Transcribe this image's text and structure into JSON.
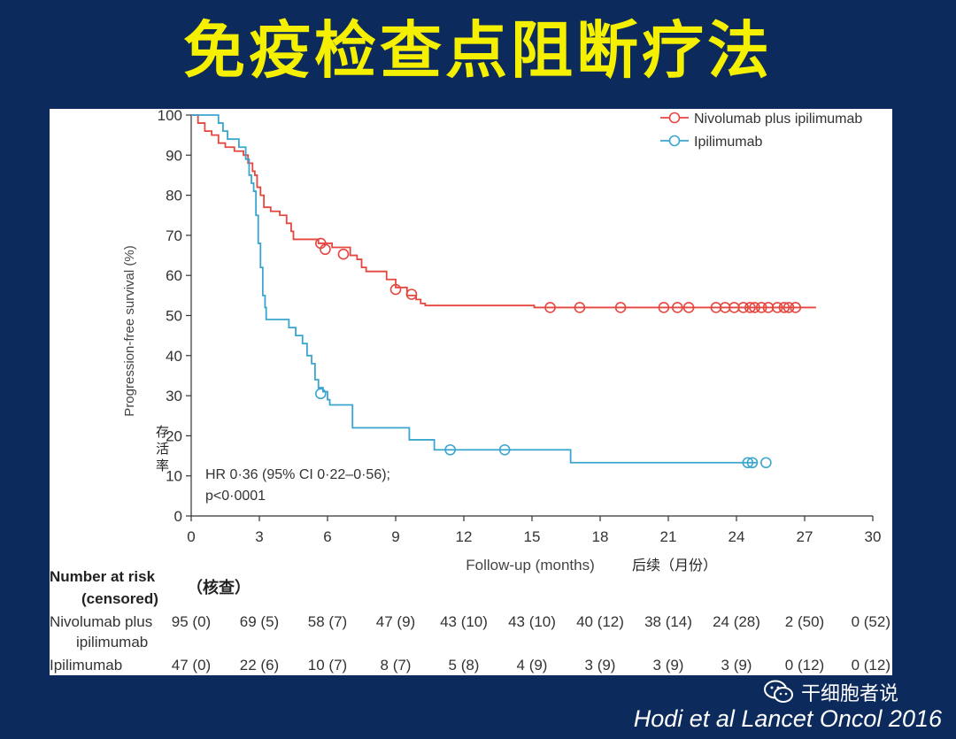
{
  "slide": {
    "title": "免疫检查点阻断疗法",
    "watermark": "干细胞者说",
    "citation": "Hodi et al Lancet Oncol 2016"
  },
  "chart_data": {
    "type": "line",
    "ylabel": "Progression-free survival (%)",
    "ylabel_cn": "存活率",
    "xlabel": "Follow-up (months)",
    "xlabel_cn": "后续（月份）",
    "xlim": [
      0,
      30
    ],
    "ylim": [
      0,
      100
    ],
    "x_ticks": [
      "0",
      "3",
      "6",
      "9",
      "12",
      "15",
      "18",
      "21",
      "24",
      "27",
      "30"
    ],
    "y_ticks": [
      "0",
      "10",
      "20",
      "30",
      "40",
      "50",
      "60",
      "70",
      "80",
      "90",
      "100"
    ],
    "legend_position": "top-right",
    "annotation": [
      "HR 0·36 (95% CI 0·22–0·56);",
      "p<0·0001"
    ],
    "series": [
      {
        "name": "Nivolumab plus ipilimumab",
        "color": "#e5473f",
        "steps": [
          [
            0,
            100
          ],
          [
            0.3,
            98
          ],
          [
            0.6,
            96
          ],
          [
            0.9,
            95
          ],
          [
            1.2,
            93
          ],
          [
            1.5,
            92
          ],
          [
            1.9,
            91
          ],
          [
            2.3,
            90
          ],
          [
            2.5,
            88
          ],
          [
            2.7,
            86
          ],
          [
            2.8,
            85
          ],
          [
            2.9,
            82
          ],
          [
            3.05,
            80
          ],
          [
            3.2,
            77
          ],
          [
            3.5,
            76
          ],
          [
            3.9,
            75
          ],
          [
            4.2,
            73
          ],
          [
            4.4,
            71
          ],
          [
            4.5,
            69
          ],
          [
            5.6,
            68
          ],
          [
            6.2,
            67
          ],
          [
            7.0,
            65
          ],
          [
            7.3,
            64
          ],
          [
            7.5,
            62
          ],
          [
            7.7,
            61
          ],
          [
            8.6,
            59
          ],
          [
            9.0,
            57
          ],
          [
            9.5,
            55
          ],
          [
            9.9,
            54
          ],
          [
            10.1,
            53
          ],
          [
            10.3,
            52.5
          ],
          [
            15.1,
            52
          ],
          [
            27.5,
            52
          ]
        ],
        "censored": [
          [
            5.7,
            68
          ],
          [
            5.9,
            66.5
          ],
          [
            6.7,
            65.3
          ],
          [
            9.0,
            56.5
          ],
          [
            9.7,
            55.3
          ],
          [
            15.8,
            52
          ],
          [
            17.1,
            52
          ],
          [
            18.9,
            52
          ],
          [
            20.8,
            52
          ],
          [
            21.4,
            52
          ],
          [
            21.9,
            52
          ],
          [
            23.1,
            52
          ],
          [
            23.5,
            52
          ],
          [
            23.9,
            52
          ],
          [
            24.3,
            52
          ],
          [
            24.6,
            52
          ],
          [
            24.8,
            52
          ],
          [
            25.1,
            52
          ],
          [
            25.4,
            52
          ],
          [
            25.8,
            52
          ],
          [
            26.1,
            52
          ],
          [
            26.3,
            52
          ],
          [
            26.6,
            52
          ]
        ]
      },
      {
        "name": "Ipilimumab",
        "color": "#3aa6cf",
        "steps": [
          [
            0,
            100
          ],
          [
            1.2,
            98
          ],
          [
            1.4,
            96
          ],
          [
            1.6,
            94
          ],
          [
            2.1,
            92
          ],
          [
            2.4,
            89
          ],
          [
            2.55,
            85
          ],
          [
            2.65,
            83
          ],
          [
            2.75,
            81
          ],
          [
            2.85,
            75
          ],
          [
            2.95,
            68
          ],
          [
            3.05,
            62
          ],
          [
            3.15,
            55
          ],
          [
            3.25,
            52
          ],
          [
            3.3,
            49
          ],
          [
            4.3,
            47
          ],
          [
            4.6,
            45
          ],
          [
            4.9,
            43
          ],
          [
            5.1,
            40
          ],
          [
            5.3,
            38
          ],
          [
            5.45,
            34
          ],
          [
            5.6,
            32
          ],
          [
            5.8,
            31
          ],
          [
            6.0,
            29
          ],
          [
            6.1,
            27.7
          ],
          [
            7.1,
            22
          ],
          [
            9.6,
            19
          ],
          [
            10.7,
            16.5
          ],
          [
            16.7,
            13.3
          ],
          [
            24.9,
            13.3
          ]
        ],
        "censored": [
          [
            5.7,
            30.5
          ],
          [
            11.4,
            16.5
          ],
          [
            13.8,
            16.5
          ],
          [
            24.5,
            13.3
          ],
          [
            24.7,
            13.3
          ],
          [
            25.3,
            13.3
          ]
        ]
      }
    ],
    "risk_table": {
      "header": "Number at risk",
      "header2": "(censored)",
      "header_cn": "（核查）",
      "rows": [
        {
          "label": "Nivolumab plus",
          "label2": "ipilimumab",
          "values": [
            "95 (0)",
            "69 (5)",
            "58 (7)",
            "47 (9)",
            "43 (10)",
            "43 (10)",
            "40 (12)",
            "38 (14)",
            "24 (28)",
            "2 (50)",
            "0 (52)"
          ]
        },
        {
          "label": "Ipilimumab",
          "label2": "",
          "values": [
            "47 (0)",
            "22 (6)",
            "10 (7)",
            "8 (7)",
            "5 (8)",
            "4 (9)",
            "3 (9)",
            "3 (9)",
            "3 (9)",
            "0 (12)",
            "0 (12)"
          ]
        }
      ]
    }
  }
}
